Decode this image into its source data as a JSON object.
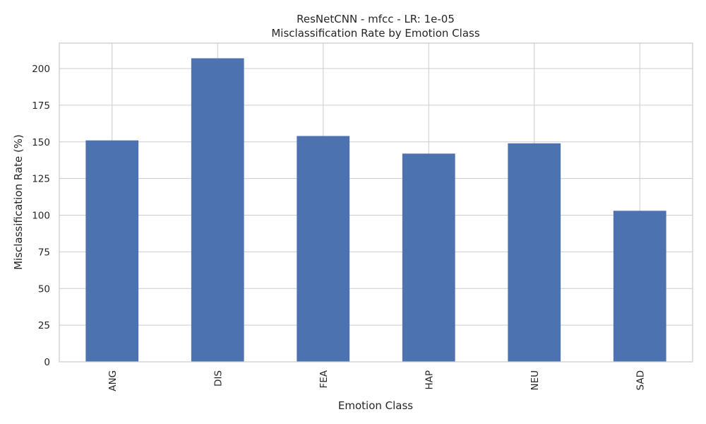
{
  "chart_data": {
    "type": "bar",
    "title": "ResNetCNN - mfcc - LR: 1e-05",
    "subtitle": "Misclassification Rate by Emotion Class",
    "xlabel": "Emotion Class",
    "ylabel": "Misclassification Rate (%)",
    "categories": [
      "ANG",
      "DIS",
      "FEA",
      "HAP",
      "NEU",
      "SAD"
    ],
    "values": [
      151,
      207,
      154,
      142,
      149,
      103
    ],
    "ylim": [
      0,
      217.35
    ],
    "yticks": [
      0,
      25,
      50,
      75,
      100,
      125,
      150,
      175,
      200
    ],
    "grid": true,
    "bar_color": "#4c72b0"
  }
}
